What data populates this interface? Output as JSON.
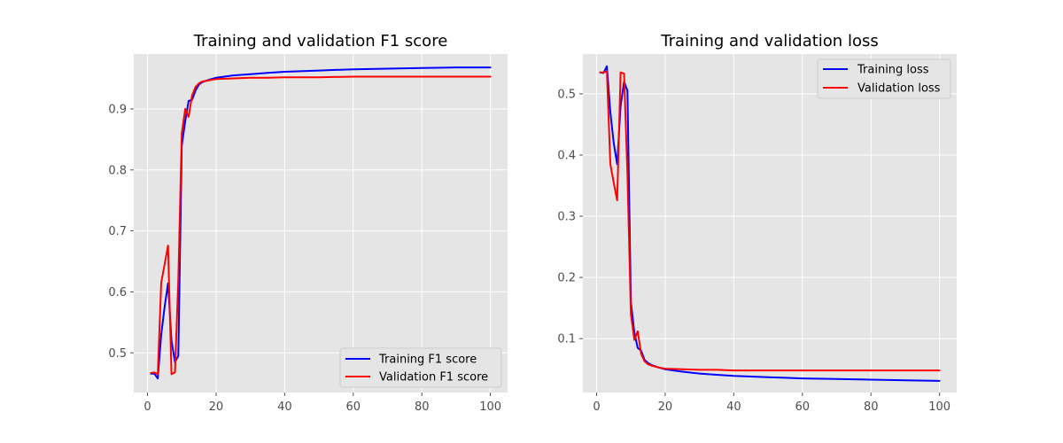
{
  "chart_data": [
    {
      "type": "line",
      "title": "Training and validation F1 score",
      "xlabel": "",
      "ylabel": "",
      "xlim": [
        -4,
        105
      ],
      "ylim": [
        0.435,
        0.99
      ],
      "xticks": [
        0,
        20,
        40,
        60,
        80,
        100
      ],
      "yticks": [
        0.5,
        0.6,
        0.7,
        0.8,
        0.9
      ],
      "xtick_labels": [
        "0",
        "20",
        "40",
        "60",
        "80",
        "100"
      ],
      "ytick_labels": [
        "0.5",
        "0.6",
        "0.7",
        "0.8",
        "0.9"
      ],
      "grid": true,
      "legend_position": "lower-right",
      "series": [
        {
          "name": "Training F1 score",
          "color": "#0000ff",
          "points": [
            [
              1,
              0.466
            ],
            [
              2,
              0.466
            ],
            [
              3,
              0.458
            ],
            [
              4,
              0.53
            ],
            [
              5,
              0.575
            ],
            [
              6,
              0.614
            ],
            [
              7,
              0.52
            ],
            [
              8,
              0.485
            ],
            [
              9,
              0.495
            ],
            [
              10,
              0.84
            ],
            [
              11,
              0.88
            ],
            [
              12,
              0.913
            ],
            [
              13,
              0.915
            ],
            [
              14,
              0.93
            ],
            [
              15,
              0.94
            ],
            [
              16,
              0.944
            ],
            [
              18,
              0.948
            ],
            [
              20,
              0.951
            ],
            [
              25,
              0.955
            ],
            [
              30,
              0.957
            ],
            [
              35,
              0.959
            ],
            [
              40,
              0.961
            ],
            [
              50,
              0.963
            ],
            [
              60,
              0.965
            ],
            [
              70,
              0.966
            ],
            [
              80,
              0.967
            ],
            [
              90,
              0.968
            ],
            [
              100,
              0.968
            ]
          ]
        },
        {
          "name": "Validation F1 score",
          "color": "#ff0000",
          "points": [
            [
              1,
              0.467
            ],
            [
              2,
              0.468
            ],
            [
              3,
              0.465
            ],
            [
              4,
              0.615
            ],
            [
              5,
              0.645
            ],
            [
              6,
              0.676
            ],
            [
              7,
              0.465
            ],
            [
              8,
              0.468
            ],
            [
              9,
              0.62
            ],
            [
              10,
              0.86
            ],
            [
              11,
              0.9
            ],
            [
              12,
              0.887
            ],
            [
              13,
              0.922
            ],
            [
              14,
              0.936
            ],
            [
              15,
              0.942
            ],
            [
              16,
              0.945
            ],
            [
              18,
              0.947
            ],
            [
              20,
              0.949
            ],
            [
              25,
              0.95
            ],
            [
              30,
              0.951
            ],
            [
              35,
              0.951
            ],
            [
              40,
              0.952
            ],
            [
              50,
              0.952
            ],
            [
              60,
              0.953
            ],
            [
              70,
              0.953
            ],
            [
              80,
              0.953
            ],
            [
              90,
              0.953
            ],
            [
              100,
              0.953
            ]
          ]
        }
      ]
    },
    {
      "type": "line",
      "title": "Training and validation loss",
      "xlabel": "",
      "ylabel": "",
      "xlim": [
        -4,
        105
      ],
      "ylim": [
        0.012,
        0.565
      ],
      "xticks": [
        0,
        20,
        40,
        60,
        80,
        100
      ],
      "yticks": [
        0.1,
        0.2,
        0.3,
        0.4,
        0.5
      ],
      "xtick_labels": [
        "0",
        "20",
        "40",
        "60",
        "80",
        "100"
      ],
      "ytick_labels": [
        "0.1",
        "0.2",
        "0.3",
        "0.4",
        "0.5"
      ],
      "grid": true,
      "legend_position": "upper-right",
      "series": [
        {
          "name": "Training loss",
          "color": "#0000ff",
          "points": [
            [
              1,
              0.535
            ],
            [
              2,
              0.534
            ],
            [
              3,
              0.545
            ],
            [
              4,
              0.47
            ],
            [
              5,
              0.42
            ],
            [
              6,
              0.385
            ],
            [
              7,
              0.48
            ],
            [
              8,
              0.52
            ],
            [
              9,
              0.505
            ],
            [
              10,
              0.16
            ],
            [
              11,
              0.11
            ],
            [
              12,
              0.085
            ],
            [
              13,
              0.08
            ],
            [
              14,
              0.065
            ],
            [
              15,
              0.06
            ],
            [
              16,
              0.057
            ],
            [
              18,
              0.053
            ],
            [
              20,
              0.05
            ],
            [
              25,
              0.046
            ],
            [
              30,
              0.043
            ],
            [
              35,
              0.041
            ],
            [
              40,
              0.039
            ],
            [
              50,
              0.037
            ],
            [
              60,
              0.035
            ],
            [
              70,
              0.034
            ],
            [
              80,
              0.033
            ],
            [
              90,
              0.032
            ],
            [
              100,
              0.031
            ]
          ]
        },
        {
          "name": "Validation loss",
          "color": "#ff0000",
          "points": [
            [
              1,
              0.535
            ],
            [
              2,
              0.535
            ],
            [
              3,
              0.537
            ],
            [
              4,
              0.385
            ],
            [
              5,
              0.355
            ],
            [
              6,
              0.326
            ],
            [
              7,
              0.535
            ],
            [
              8,
              0.533
            ],
            [
              9,
              0.37
            ],
            [
              10,
              0.14
            ],
            [
              11,
              0.098
            ],
            [
              12,
              0.112
            ],
            [
              13,
              0.075
            ],
            [
              14,
              0.063
            ],
            [
              15,
              0.058
            ],
            [
              16,
              0.056
            ],
            [
              18,
              0.053
            ],
            [
              20,
              0.051
            ],
            [
              25,
              0.05
            ],
            [
              30,
              0.049
            ],
            [
              35,
              0.049
            ],
            [
              40,
              0.048
            ],
            [
              50,
              0.048
            ],
            [
              60,
              0.048
            ],
            [
              70,
              0.048
            ],
            [
              80,
              0.048
            ],
            [
              90,
              0.048
            ],
            [
              100,
              0.048
            ]
          ]
        }
      ]
    }
  ]
}
